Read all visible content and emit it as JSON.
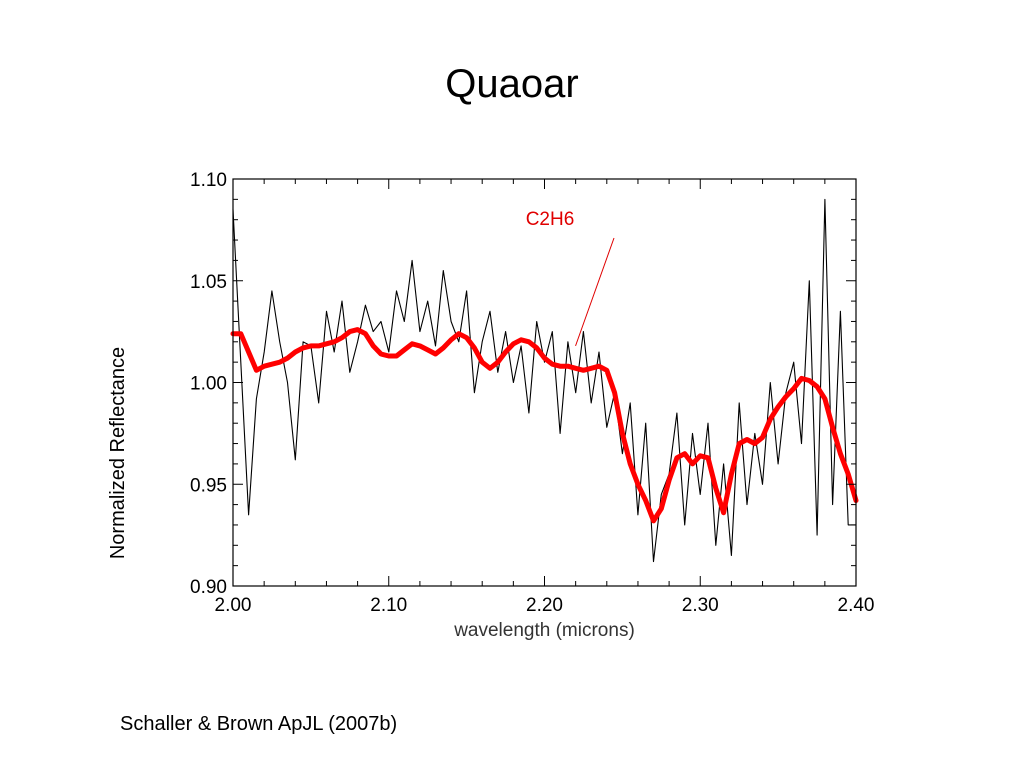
{
  "slide": {
    "title": "Quaoar",
    "citation": "Schaller & Brown ApJL (2007b)"
  },
  "chart_data": {
    "type": "line",
    "title": "",
    "xlabel": "wavelength (microns)",
    "ylabel": "Normalized Reflectance",
    "xlim": [
      2.0,
      2.4
    ],
    "ylim": [
      0.9,
      1.1
    ],
    "xticks": [
      "2.00",
      "2.10",
      "2.20",
      "2.30",
      "2.40"
    ],
    "yticks": [
      "0.90",
      "0.95",
      "1.00",
      "1.05",
      "1.10"
    ],
    "grid": false,
    "legend": "none",
    "annotation": {
      "text": "C2H6",
      "color": "#e00000",
      "points_to": [
        2.218,
        1.018
      ]
    },
    "series": [
      {
        "role": "observed spectrum",
        "color": "#000000",
        "x": [
          2.0,
          2.005,
          2.01,
          2.015,
          2.02,
          2.025,
          2.03,
          2.035,
          2.04,
          2.045,
          2.05,
          2.055,
          2.06,
          2.065,
          2.07,
          2.075,
          2.08,
          2.085,
          2.09,
          2.095,
          2.1,
          2.105,
          2.11,
          2.115,
          2.12,
          2.125,
          2.13,
          2.135,
          2.14,
          2.145,
          2.15,
          2.155,
          2.16,
          2.165,
          2.17,
          2.175,
          2.18,
          2.185,
          2.19,
          2.195,
          2.2,
          2.205,
          2.21,
          2.215,
          2.22,
          2.225,
          2.23,
          2.235,
          2.24,
          2.245,
          2.25,
          2.255,
          2.26,
          2.265,
          2.27,
          2.275,
          2.28,
          2.285,
          2.29,
          2.295,
          2.3,
          2.305,
          2.31,
          2.315,
          2.32,
          2.325,
          2.33,
          2.335,
          2.34,
          2.345,
          2.35,
          2.355,
          2.36,
          2.365,
          2.37,
          2.375,
          2.38,
          2.385,
          2.39,
          2.395,
          2.4
        ],
        "values": [
          1.085,
          1.01,
          0.935,
          0.992,
          1.015,
          1.045,
          1.02,
          1.0,
          0.962,
          1.02,
          1.018,
          0.99,
          1.035,
          1.015,
          1.04,
          1.005,
          1.02,
          1.038,
          1.025,
          1.03,
          1.015,
          1.045,
          1.03,
          1.06,
          1.025,
          1.04,
          1.018,
          1.055,
          1.03,
          1.02,
          1.045,
          0.995,
          1.02,
          1.035,
          1.005,
          1.025,
          1.0,
          1.018,
          0.985,
          1.03,
          1.01,
          1.025,
          0.975,
          1.02,
          0.995,
          1.025,
          0.99,
          1.015,
          0.978,
          0.995,
          0.965,
          0.99,
          0.935,
          0.98,
          0.912,
          0.945,
          0.955,
          0.985,
          0.93,
          0.975,
          0.945,
          0.98,
          0.92,
          0.96,
          0.915,
          0.99,
          0.94,
          0.975,
          0.95,
          1.0,
          0.96,
          0.995,
          1.01,
          0.97,
          1.05,
          0.925,
          1.09,
          0.94,
          1.035,
          0.93,
          0.93
        ]
      },
      {
        "role": "model fit",
        "color": "#ff0000",
        "x": [
          2.0,
          2.005,
          2.01,
          2.015,
          2.02,
          2.025,
          2.03,
          2.035,
          2.04,
          2.045,
          2.05,
          2.055,
          2.06,
          2.065,
          2.07,
          2.075,
          2.08,
          2.085,
          2.09,
          2.095,
          2.1,
          2.105,
          2.11,
          2.115,
          2.12,
          2.125,
          2.13,
          2.135,
          2.14,
          2.145,
          2.15,
          2.155,
          2.16,
          2.165,
          2.17,
          2.175,
          2.18,
          2.185,
          2.19,
          2.195,
          2.2,
          2.205,
          2.21,
          2.215,
          2.22,
          2.225,
          2.23,
          2.235,
          2.24,
          2.245,
          2.25,
          2.255,
          2.26,
          2.265,
          2.27,
          2.275,
          2.28,
          2.285,
          2.29,
          2.295,
          2.3,
          2.305,
          2.31,
          2.315,
          2.32,
          2.325,
          2.33,
          2.335,
          2.34,
          2.345,
          2.35,
          2.355,
          2.36,
          2.365,
          2.37,
          2.375,
          2.38,
          2.385,
          2.39,
          2.395,
          2.4
        ],
        "values": [
          1.024,
          1.024,
          1.015,
          1.006,
          1.008,
          1.009,
          1.01,
          1.012,
          1.015,
          1.017,
          1.018,
          1.018,
          1.019,
          1.02,
          1.022,
          1.025,
          1.026,
          1.024,
          1.018,
          1.014,
          1.013,
          1.013,
          1.016,
          1.019,
          1.018,
          1.016,
          1.014,
          1.017,
          1.021,
          1.024,
          1.022,
          1.017,
          1.01,
          1.007,
          1.01,
          1.015,
          1.019,
          1.021,
          1.02,
          1.017,
          1.012,
          1.009,
          1.008,
          1.008,
          1.007,
          1.006,
          1.007,
          1.008,
          1.006,
          0.995,
          0.975,
          0.96,
          0.95,
          0.942,
          0.932,
          0.938,
          0.952,
          0.963,
          0.965,
          0.96,
          0.964,
          0.963,
          0.948,
          0.936,
          0.955,
          0.97,
          0.972,
          0.97,
          0.973,
          0.982,
          0.988,
          0.993,
          0.997,
          1.002,
          1.001,
          0.998,
          0.992,
          0.978,
          0.965,
          0.955,
          0.942
        ]
      }
    ]
  }
}
